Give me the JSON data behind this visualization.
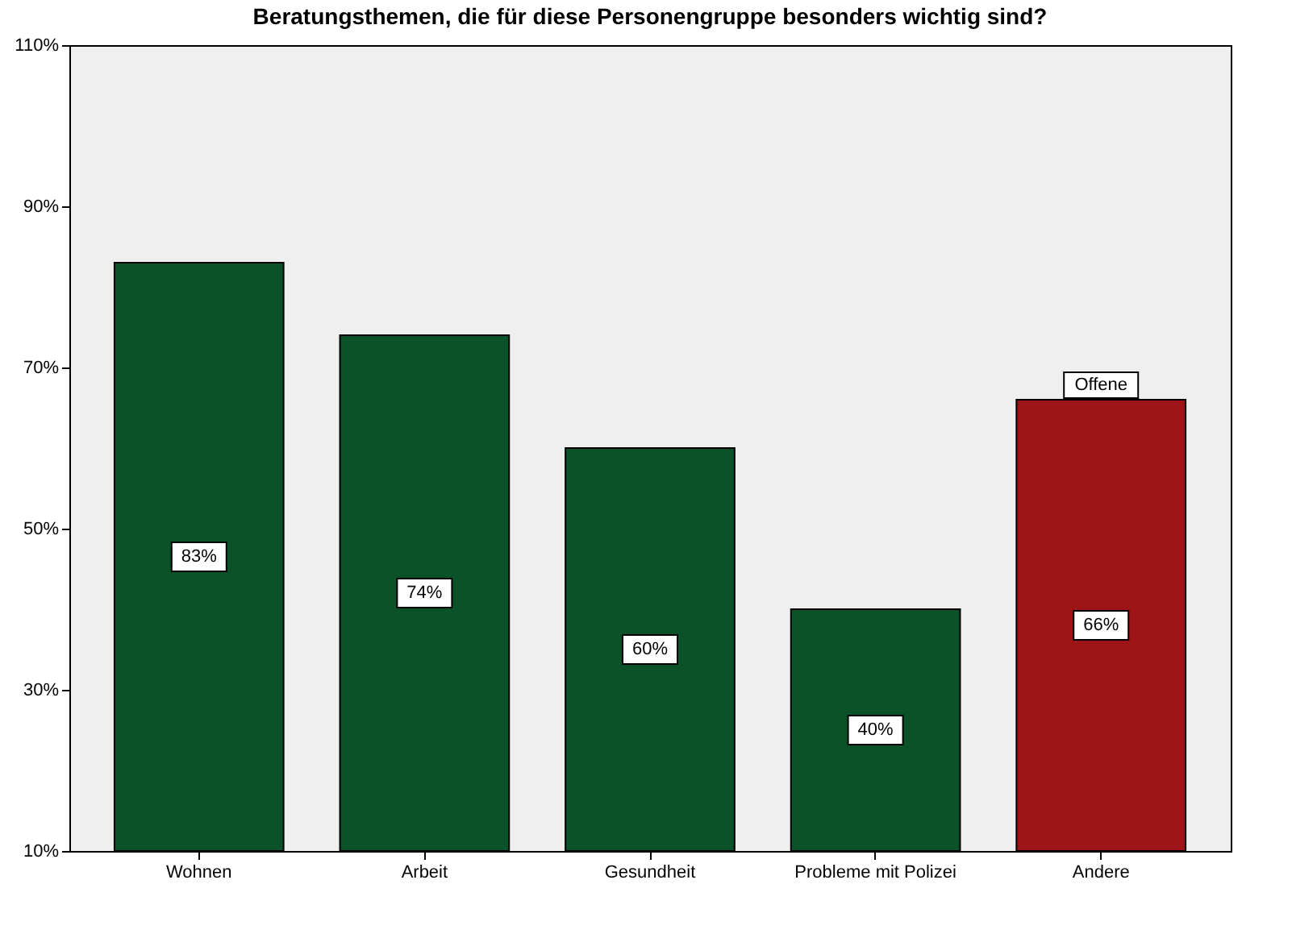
{
  "chart_data": {
    "type": "bar",
    "title": "Beratungsthemen, die für diese Personengruppe besonders wichtig sind?",
    "categories": [
      "Wohnen",
      "Arbeit",
      "Gesundheit",
      "Probleme mit Polizei",
      "Andere"
    ],
    "values": [
      83,
      74,
      60,
      40,
      66
    ],
    "colors": [
      "#0b5229",
      "#0b5229",
      "#0b5229",
      "#0b5229",
      "#9e1518"
    ],
    "value_labels": [
      "83%",
      "74%",
      "60%",
      "40%",
      "66%"
    ],
    "annotations": [
      {
        "text": "Offene",
        "x": "Andere",
        "y": 66
      }
    ],
    "ylim": [
      10,
      110
    ],
    "yticks": [
      {
        "value": 10,
        "label": "10%"
      },
      {
        "value": 30,
        "label": "30%"
      },
      {
        "value": 50,
        "label": "50%"
      },
      {
        "value": 70,
        "label": "70%"
      },
      {
        "value": 90,
        "label": "90%"
      },
      {
        "value": 110,
        "label": "110%"
      }
    ],
    "grid": false
  }
}
